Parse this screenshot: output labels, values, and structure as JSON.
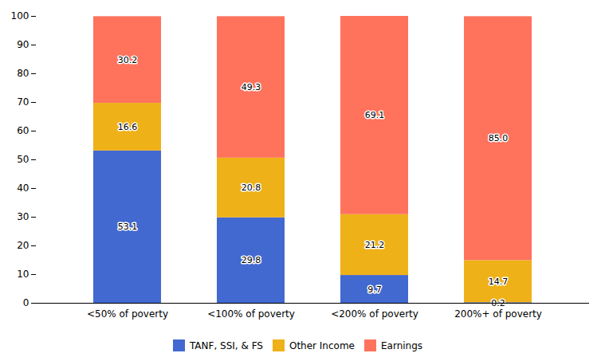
{
  "chart_data": {
    "type": "bar",
    "stacked": true,
    "data_labels": true,
    "grid": false,
    "categories": [
      "<50% of poverty",
      "<100% of poverty",
      "<200% of poverty",
      "200%+ of poverty"
    ],
    "series": [
      {
        "name": "TANF, SSI, & FS",
        "values": [
          53.1,
          29.8,
          9.7,
          0.2
        ],
        "value_labels": [
          "53.1",
          "29.8",
          "9.7",
          "0.2"
        ]
      },
      {
        "name": "Other Income",
        "values": [
          16.6,
          20.8,
          21.2,
          14.7
        ],
        "value_labels": [
          "16.6",
          "20.8",
          "21.2",
          "14.7"
        ]
      },
      {
        "name": "Earnings",
        "values": [
          30.2,
          49.3,
          69.1,
          85.0
        ],
        "value_labels": [
          "30.2",
          "49.3",
          "69.1",
          "85.0"
        ]
      }
    ],
    "ylim": [
      0,
      100
    ],
    "yticks": [
      0,
      10,
      20,
      30,
      40,
      50,
      60,
      70,
      80,
      90,
      100
    ]
  }
}
